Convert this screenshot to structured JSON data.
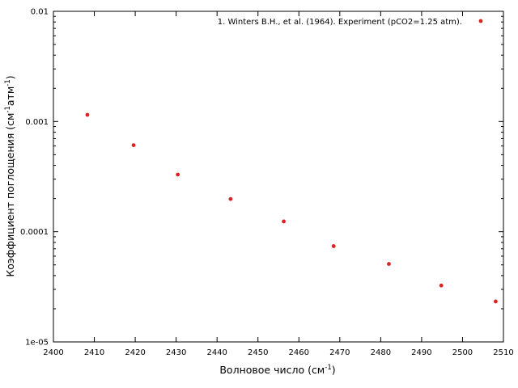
{
  "chart_data": {
    "type": "scatter",
    "xlabel": {
      "text": "Волновое число (см",
      "sup": "-1",
      "tail": ")"
    },
    "ylabel": {
      "part1": "Коэффициент поглощения (см",
      "sup1": "-1",
      "part2": "атм",
      "sup2": "-1",
      "tail": ")"
    },
    "x_ticks": [
      "2400",
      "2410",
      "2420",
      "2430",
      "2440",
      "2450",
      "2460",
      "2470",
      "2480",
      "2490",
      "2500",
      "2510"
    ],
    "y_ticks": [
      "1e-05",
      "0.0001",
      "0.001",
      "0.01"
    ],
    "xlim": [
      2400,
      2510
    ],
    "ylim": [
      1e-05,
      0.01
    ],
    "y_scale": "log",
    "grid": false,
    "legend_position": "top-right",
    "series": [
      {
        "name": "1. Winters B.H., et al. (1964). Experiment (pCO2=1.25 atm).",
        "color": "#dd2222",
        "x": [
          2408.3,
          2419.6,
          2430.4,
          2443.3,
          2456.3,
          2468.5,
          2482.0,
          2494.8,
          2508.1
        ],
        "y": [
          0.00115,
          0.00061,
          0.00033,
          0.000198,
          0.000124,
          7.4e-05,
          5.1e-05,
          3.25e-05,
          2.33e-05
        ]
      }
    ]
  }
}
